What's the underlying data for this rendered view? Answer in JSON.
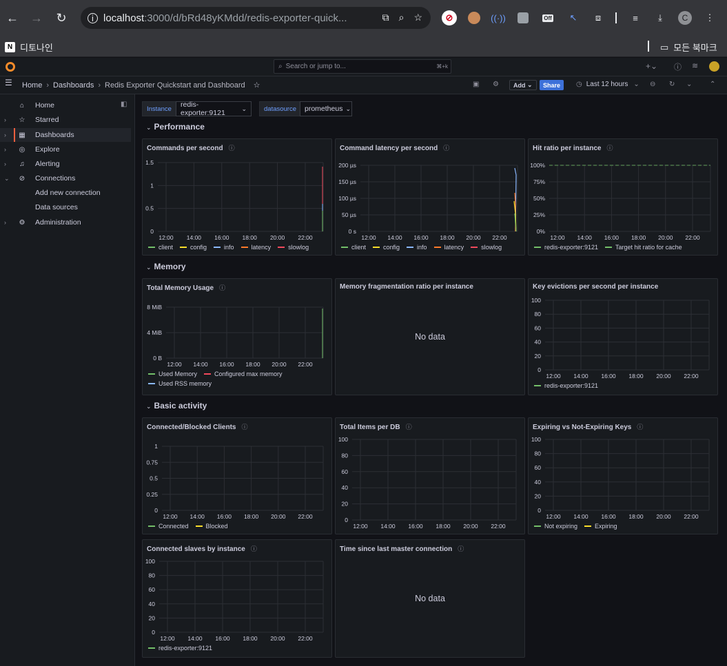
{
  "browser": {
    "url_host": "localhost",
    "url_path": ":3000/d/bRd48yKMdd/redis-exporter-quick...",
    "bookmark_left": "디토나인",
    "bookmark_right": "모든 북마크",
    "profile_initial": "C",
    "ext_badge": "Off"
  },
  "grafana": {
    "search_placeholder": "Search or jump to...",
    "search_shortcut": "⌘+k",
    "breadcrumb": [
      "Home",
      "Dashboards",
      "Redis Exporter Quickstart and Dashboard"
    ],
    "toolbar": {
      "add_label": "Add",
      "share_label": "Share",
      "time_range": "Last 12 hours"
    }
  },
  "sidebar": {
    "items": [
      {
        "label": "Home",
        "icon": "home-icon"
      },
      {
        "label": "Starred",
        "icon": "star-icon"
      },
      {
        "label": "Dashboards",
        "icon": "grid-icon"
      },
      {
        "label": "Explore",
        "icon": "compass-icon"
      },
      {
        "label": "Alerting",
        "icon": "bell-icon"
      },
      {
        "label": "Connections",
        "icon": "connection-icon"
      },
      {
        "label": "Add new connection",
        "icon": ""
      },
      {
        "label": "Data sources",
        "icon": ""
      },
      {
        "label": "Administration",
        "icon": "gear-icon"
      }
    ]
  },
  "variables": {
    "instance_label": "Instance",
    "instance_value": "redis-exporter:9121",
    "datasource_label": "datasource",
    "datasource_value": "prometheus"
  },
  "rows": {
    "performance": "Performance",
    "memory": "Memory",
    "basic_activity": "Basic activity"
  },
  "colors": {
    "green": "#73bf69",
    "yellow": "#fade2a",
    "blue": "#8ab8ff",
    "orange": "#ff7a2a",
    "red": "#f2495c",
    "accent": "#3d71d9"
  },
  "x_ticks": [
    "12:00",
    "14:00",
    "16:00",
    "18:00",
    "20:00",
    "22:00"
  ],
  "panels": {
    "commands_per_second": {
      "title": "Commands per second",
      "y_ticks": [
        "1.5",
        "1",
        "0.5",
        "0"
      ],
      "legend": [
        "client",
        "config",
        "info",
        "latency",
        "slowlog"
      ]
    },
    "command_latency": {
      "title": "Command latency per second",
      "y_ticks": [
        "200 µs",
        "150 µs",
        "100 µs",
        "50 µs",
        "0 s"
      ],
      "legend": [
        "client",
        "config",
        "info",
        "latency",
        "slowlog"
      ]
    },
    "hit_ratio": {
      "title": "Hit ratio per instance",
      "y_ticks": [
        "100%",
        "75%",
        "50%",
        "25%",
        "0%"
      ],
      "legend": [
        "redis-exporter:9121",
        "Target hit ratio for cache"
      ]
    },
    "total_memory": {
      "title": "Total Memory Usage",
      "y_ticks": [
        "8 MiB",
        "4 MiB",
        "0 B"
      ],
      "legend": [
        "Used Memory",
        "Configured max memory",
        "Used RSS memory"
      ]
    },
    "mem_frag": {
      "title": "Memory fragmentation ratio per instance",
      "nodata": "No data"
    },
    "key_evictions": {
      "title": "Key evictions per second per instance",
      "y_ticks": [
        "100",
        "80",
        "60",
        "40",
        "20",
        "0"
      ],
      "legend": [
        "redis-exporter:9121"
      ]
    },
    "connected_blocked": {
      "title": "Connected/Blocked Clients",
      "y_ticks": [
        "1",
        "0.75",
        "0.5",
        "0.25",
        "0"
      ],
      "legend": [
        "Connected",
        "Blocked"
      ]
    },
    "total_items": {
      "title": "Total Items per DB",
      "y_ticks": [
        "100",
        "80",
        "60",
        "40",
        "20",
        "0"
      ],
      "legend": []
    },
    "expiring_keys": {
      "title": "Expiring vs Not-Expiring Keys",
      "y_ticks": [
        "100",
        "80",
        "60",
        "40",
        "20",
        "0"
      ],
      "legend": [
        "Not expiring",
        "Expiring"
      ]
    },
    "connected_slaves": {
      "title": "Connected slaves by instance",
      "y_ticks": [
        "100",
        "80",
        "60",
        "40",
        "20",
        "0"
      ],
      "legend": [
        "redis-exporter:9121"
      ]
    },
    "time_since_master": {
      "title": "Time since last master connection",
      "nodata": "No data"
    }
  }
}
